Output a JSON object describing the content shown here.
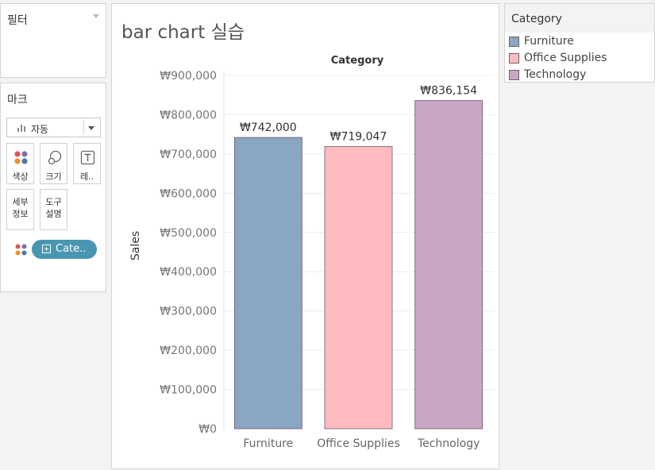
{
  "filters": {
    "title": "필터"
  },
  "marks": {
    "title": "마크",
    "mark_type": "자동",
    "buttons": {
      "color": "색상",
      "size": "크기",
      "label": "레..",
      "detail": "세부\n정보",
      "tooltip": "도구\n설명"
    },
    "pill_label": "Cate.."
  },
  "worksheet": {
    "title": "bar chart 실습"
  },
  "legend": {
    "title": "Category",
    "items": [
      {
        "name": "Furniture",
        "color": "#89a6c3"
      },
      {
        "name": "Office Supplies",
        "color": "#fdbbbf"
      },
      {
        "name": "Technology",
        "color": "#c9a6c3"
      }
    ]
  },
  "chart_data": {
    "type": "bar",
    "column_header": "Category",
    "ylabel": "Sales",
    "categories": [
      "Furniture",
      "Office Supplies",
      "Technology"
    ],
    "values": [
      742000,
      719047,
      836154
    ],
    "value_labels": [
      "₩742,000",
      "₩719,047",
      "₩836,154"
    ],
    "colors": [
      "#89a6c3",
      "#fdbbbf",
      "#c9a6c3"
    ],
    "ylim": [
      0,
      900000
    ],
    "yticks": [
      0,
      100000,
      200000,
      300000,
      400000,
      500000,
      600000,
      700000,
      800000,
      900000
    ],
    "ytick_labels": [
      "₩0",
      "₩100,000",
      "₩200,000",
      "₩300,000",
      "₩400,000",
      "₩500,000",
      "₩600,000",
      "₩700,000",
      "₩800,000",
      "₩900,000"
    ]
  }
}
